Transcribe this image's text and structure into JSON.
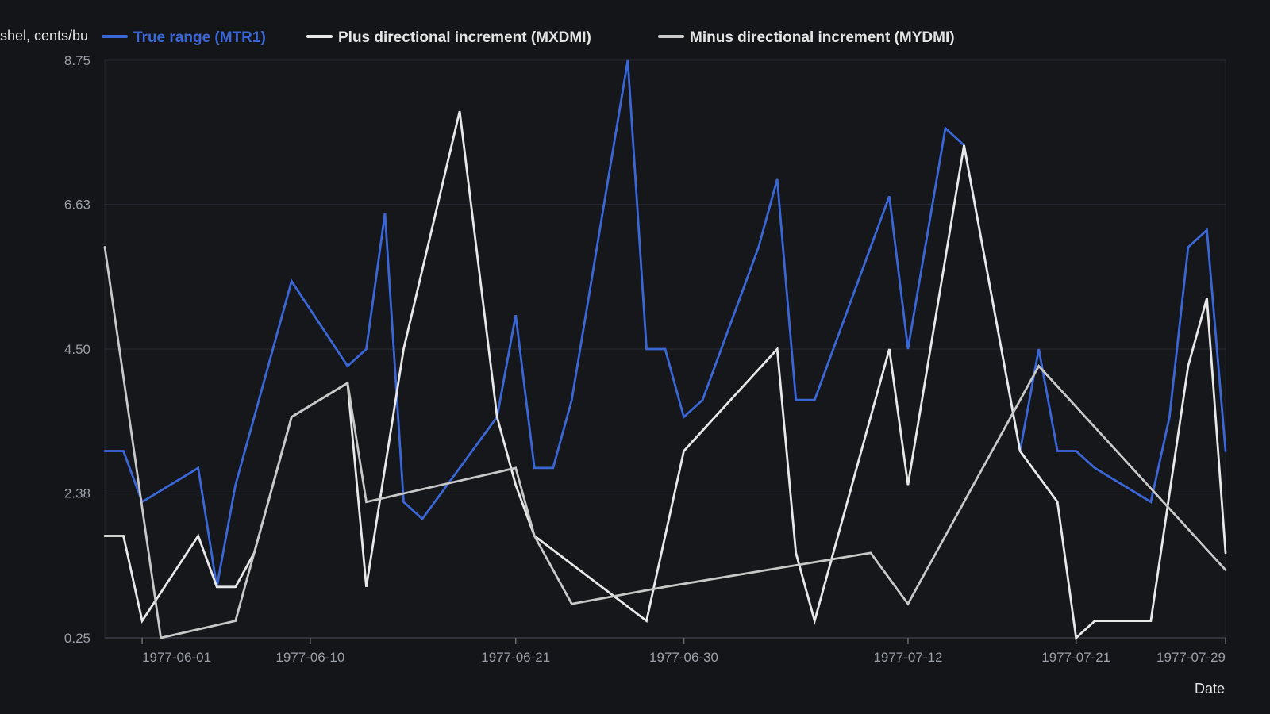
{
  "chart_data": {
    "type": "line",
    "xlabel": "Date",
    "ylabel": "shel, cents/bu",
    "x_ticks": [
      "1977-06-01",
      "1977-06-10",
      "1977-06-21",
      "1977-06-30",
      "1977-07-12",
      "1977-07-21",
      "1977-07-29"
    ],
    "y_ticks": [
      "0.25",
      "2.38",
      "4.50",
      "6.63",
      "8.75"
    ],
    "ylim": [
      0.25,
      8.75
    ],
    "xlim": [
      "1977-05-30",
      "1977-07-29"
    ],
    "grid": "horizontal",
    "legend": "top",
    "series": [
      {
        "name": "True range (MTR1)",
        "color": "#3a66d6",
        "points": [
          [
            "1977-05-30",
            3.0
          ],
          [
            "1977-05-31",
            3.0
          ],
          [
            "1977-06-01",
            2.25
          ],
          [
            "1977-06-04",
            2.75
          ],
          [
            "1977-06-05",
            1.0
          ],
          [
            "1977-06-06",
            2.5
          ],
          [
            "1977-06-07",
            3.5
          ],
          [
            "1977-06-09",
            5.5
          ],
          [
            "1977-06-12",
            4.25
          ],
          [
            "1977-06-13",
            4.5
          ],
          [
            "1977-06-14",
            6.5
          ],
          [
            "1977-06-15",
            2.25
          ],
          [
            "1977-06-16",
            2.0
          ],
          [
            "1977-06-20",
            3.5
          ],
          [
            "1977-06-21",
            5.0
          ],
          [
            "1977-06-22",
            2.75
          ],
          [
            "1977-06-23",
            2.75
          ],
          [
            "1977-06-24",
            3.75
          ],
          [
            "1977-06-27",
            8.75
          ],
          [
            "1977-06-28",
            4.5
          ],
          [
            "1977-06-29",
            4.5
          ],
          [
            "1977-06-30",
            3.5
          ],
          [
            "1977-07-01",
            3.75
          ],
          [
            "1977-07-04",
            6.0
          ],
          [
            "1977-07-05",
            7.0
          ],
          [
            "1977-07-06",
            3.75
          ],
          [
            "1977-07-07",
            3.75
          ],
          [
            "1977-07-11",
            6.75
          ],
          [
            "1977-07-12",
            4.5
          ],
          [
            "1977-07-14",
            7.75
          ],
          [
            "1977-07-15",
            7.5
          ],
          [
            "1977-07-18",
            3.0
          ],
          [
            "1977-07-19",
            4.5
          ],
          [
            "1977-07-20",
            3.0
          ],
          [
            "1977-07-21",
            3.0
          ],
          [
            "1977-07-22",
            2.75
          ],
          [
            "1977-07-25",
            2.25
          ],
          [
            "1977-07-26",
            3.5
          ],
          [
            "1977-07-27",
            6.0
          ],
          [
            "1977-07-28",
            6.25
          ],
          [
            "1977-07-29",
            3.0
          ]
        ]
      },
      {
        "name": "Plus directional increment (MXDMI)",
        "color": "#e8e8e8",
        "points": [
          [
            "1977-05-30",
            1.75
          ],
          [
            "1977-05-31",
            1.75
          ],
          [
            "1977-06-01",
            0.5
          ],
          [
            "1977-06-04",
            1.75
          ],
          [
            "1977-06-05",
            1.0
          ],
          [
            "1977-06-06",
            1.0
          ],
          [
            "1977-06-07",
            1.5
          ],
          [
            "1977-06-09",
            3.5
          ],
          [
            "1977-06-12",
            4.0
          ],
          [
            "1977-06-13",
            1.0
          ],
          [
            "1977-06-15",
            4.5
          ],
          [
            "1977-06-18",
            8.0
          ],
          [
            "1977-06-20",
            3.5
          ],
          [
            "1977-06-21",
            2.5
          ],
          [
            "1977-06-22",
            1.75
          ],
          [
            "1977-06-28",
            0.5
          ],
          [
            "1977-06-30",
            3.0
          ],
          [
            "1977-07-05",
            4.5
          ],
          [
            "1977-07-06",
            1.5
          ],
          [
            "1977-07-07",
            0.5
          ],
          [
            "1977-07-11",
            4.5
          ],
          [
            "1977-07-12",
            2.5
          ],
          [
            "1977-07-15",
            7.5
          ],
          [
            "1977-07-18",
            3.0
          ],
          [
            "1977-07-20",
            2.25
          ],
          [
            "1977-07-21",
            0.25
          ],
          [
            "1977-07-22",
            0.5
          ],
          [
            "1977-07-25",
            0.5
          ],
          [
            "1977-07-27",
            4.25
          ],
          [
            "1977-07-28",
            5.25
          ],
          [
            "1977-07-29",
            1.5
          ]
        ]
      },
      {
        "name": "Minus directional increment (MYDMI)",
        "color": "#c8c8c8",
        "points": [
          [
            "1977-05-30",
            6.0
          ],
          [
            "1977-06-02",
            0.25
          ],
          [
            "1977-06-06",
            0.5
          ],
          [
            "1977-06-09",
            3.5
          ],
          [
            "1977-06-12",
            4.0
          ],
          [
            "1977-06-13",
            2.25
          ],
          [
            "1977-06-13",
            2.25
          ],
          [
            "1977-06-21",
            2.75
          ],
          [
            "1977-06-22",
            1.75
          ],
          [
            "1977-06-24",
            0.75
          ],
          [
            "1977-06-29",
            1.0
          ],
          [
            "1977-07-10",
            1.5
          ],
          [
            "1977-07-12",
            0.75
          ],
          [
            "1977-07-19",
            4.25
          ],
          [
            "1977-07-29",
            1.25
          ]
        ]
      }
    ]
  }
}
